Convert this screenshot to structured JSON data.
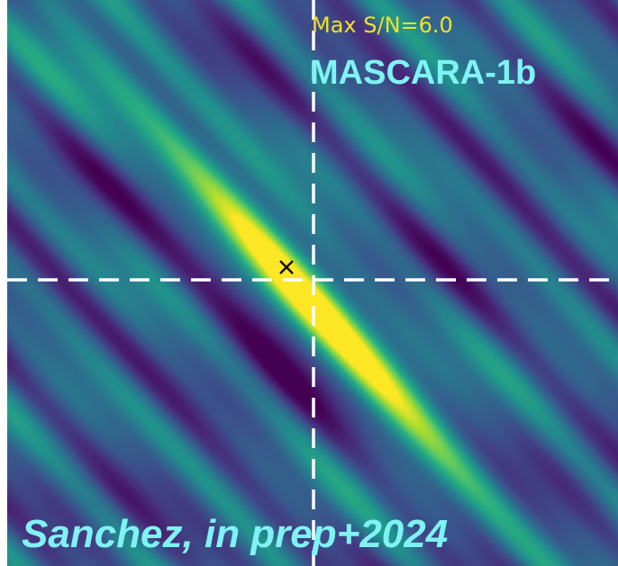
{
  "chart_data": {
    "type": "heatmap",
    "title": "",
    "xlabel": "",
    "ylabel": "",
    "colormap": "viridis",
    "grid": false,
    "max_sn_label": "Max S/N=6.0",
    "max_sn": 6.0,
    "planet_label": "MASCARA-1b",
    "credit_label": "Sanchez, in prep+2024",
    "colors": {
      "crosshair": "#ffffff",
      "marker": "#111111",
      "sn_text": "#f2e02a",
      "label_text": "#7ff3f3"
    }
  }
}
